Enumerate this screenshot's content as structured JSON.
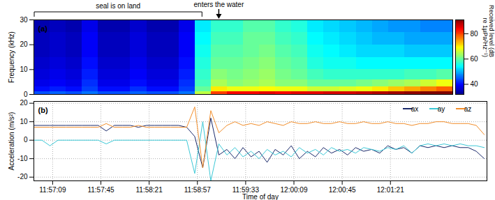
{
  "chart_data": [
    {
      "type": "heatmap",
      "panel_label": "(a)",
      "ylabel": "Frequency (kHz)",
      "tick_labels": "y",
      "annotations": [
        {
          "text": "seal is on land",
          "x1": 43015,
          "x2": 43141
        },
        {
          "text": "enters the water",
          "x": 43153
        }
      ],
      "xlim": [
        43015,
        43327
      ],
      "ylim": [
        0,
        30
      ],
      "yticks": [
        0,
        10,
        20,
        30
      ],
      "time_bins": [
        43015,
        43027,
        43039,
        43051,
        43063,
        43075,
        43087,
        43099,
        43111,
        43123,
        43135,
        43147,
        43159,
        43171,
        43183,
        43195,
        43207,
        43219,
        43231,
        43243,
        43255,
        43267,
        43279,
        43291,
        43303,
        43315,
        43327
      ],
      "frequency_bins": [
        0,
        1,
        3,
        6,
        10,
        15,
        20,
        25,
        30
      ],
      "cells": [
        [
          44,
          45,
          44,
          46,
          44,
          44,
          45,
          44,
          44,
          46,
          65,
          80,
          84,
          84,
          85,
          84,
          85,
          85,
          86,
          86,
          87,
          88,
          89,
          90,
          91,
          92
        ],
        [
          40,
          41,
          40,
          43,
          40,
          40,
          42,
          40,
          40,
          43,
          60,
          70,
          68,
          68,
          69,
          68,
          68,
          66,
          66,
          67,
          68,
          70,
          72,
          74,
          76,
          78
        ],
        [
          38,
          39,
          38,
          42,
          38,
          38,
          40,
          38,
          38,
          42,
          58,
          64,
          62,
          63,
          64,
          62,
          62,
          60,
          60,
          60,
          61,
          62,
          63,
          64,
          66,
          68
        ],
        [
          37,
          38,
          37,
          41,
          37,
          37,
          39,
          37,
          37,
          41,
          57,
          62,
          61,
          62,
          63,
          61,
          60,
          58,
          57,
          57,
          57,
          57,
          57,
          58,
          58,
          59
        ],
        [
          36,
          37,
          36,
          40,
          36,
          36,
          38,
          36,
          36,
          40,
          56,
          60,
          60,
          61,
          62,
          60,
          59,
          56,
          55,
          55,
          54,
          54,
          54,
          54,
          54,
          54
        ],
        [
          35,
          36,
          35,
          39,
          35,
          35,
          37,
          35,
          35,
          39,
          55,
          59,
          59,
          60,
          61,
          59,
          58,
          55,
          54,
          53,
          52,
          52,
          52,
          51,
          51,
          51
        ],
        [
          35,
          36,
          35,
          39,
          35,
          35,
          37,
          35,
          35,
          39,
          54,
          58,
          58,
          60,
          60,
          58,
          57,
          54,
          53,
          52,
          51,
          50,
          50,
          49,
          49,
          49
        ],
        [
          34,
          35,
          34,
          38,
          34,
          34,
          36,
          34,
          34,
          38,
          53,
          57,
          57,
          59,
          59,
          57,
          56,
          53,
          52,
          51,
          50,
          49,
          48,
          48,
          47,
          47
        ]
      ],
      "colorbar": {
        "label": "Received level (dB re 1µPa²Hz⁻¹)",
        "range": [
          32,
          91
        ],
        "ticks": [
          40,
          60,
          80
        ]
      }
    },
    {
      "type": "line",
      "panel_label": "(b)",
      "xlabel": "Time of day",
      "ylabel": "Acceleration (m/s²)",
      "grid": true,
      "legend": "top-right",
      "xlim": [
        43015,
        43353
      ],
      "xticks": [
        {
          "value": 43029,
          "label": "11:57:09"
        },
        {
          "value": 43065,
          "label": "11:57:45"
        },
        {
          "value": 43101,
          "label": "11:58:21"
        },
        {
          "value": 43137,
          "label": "11:58:57"
        },
        {
          "value": 43173,
          "label": "11:59:33"
        },
        {
          "value": 43209,
          "label": "12:00:09"
        },
        {
          "value": 43245,
          "label": "12:00:45"
        },
        {
          "value": 43281,
          "label": "12:01:21"
        }
      ],
      "ylim": [
        -22,
        21
      ],
      "yticks": [
        -20,
        -10,
        0,
        10,
        20
      ],
      "x": [
        43015,
        43021,
        43027,
        43033,
        43039,
        43045,
        43051,
        43057,
        43063,
        43069,
        43075,
        43081,
        43087,
        43093,
        43099,
        43105,
        43111,
        43117,
        43123,
        43129,
        43135,
        43141,
        43147,
        43153,
        43159,
        43165,
        43171,
        43177,
        43183,
        43189,
        43195,
        43201,
        43207,
        43213,
        43219,
        43225,
        43231,
        43237,
        43243,
        43249,
        43255,
        43261,
        43267,
        43273,
        43279,
        43285,
        43291,
        43297,
        43303,
        43309,
        43315,
        43321,
        43327,
        43333,
        43339,
        43345,
        43351
      ],
      "series": [
        {
          "name": "ax",
          "color": "#1b2a6b",
          "values": [
            8,
            8,
            8,
            8,
            8,
            8,
            8,
            8,
            8,
            5,
            8,
            8,
            8,
            7,
            8,
            8,
            8,
            8,
            8,
            7,
            2,
            -15,
            12,
            -8,
            -5,
            -10,
            -4,
            -9,
            -6,
            -12,
            -5,
            -8,
            -3,
            -10,
            -6,
            -9,
            -4,
            -7,
            -5,
            -8,
            -4,
            -6,
            -5,
            -7,
            -3,
            -5,
            -4,
            -7,
            -3,
            -4,
            -3,
            -4,
            -3,
            -4,
            -4,
            -6,
            -10
          ]
        },
        {
          "name": "ay",
          "color": "#3cc8d6",
          "values": [
            0,
            0,
            -3,
            0,
            0,
            0,
            0,
            0,
            0,
            -2,
            0,
            0,
            0,
            0,
            0,
            0,
            0,
            0,
            0,
            0,
            -18,
            10,
            -22,
            -2,
            -8,
            -4,
            -9,
            -6,
            -10,
            -5,
            -8,
            -6,
            -9,
            -4,
            -7,
            -5,
            -8,
            -4,
            -6,
            -5,
            -7,
            -4,
            -5,
            -6,
            -4,
            -5,
            -3,
            -7,
            -3,
            -2,
            -3,
            -2,
            -3,
            -2,
            -3,
            -3,
            -4
          ]
        },
        {
          "name": "az",
          "color": "#f28e2b",
          "values": [
            7,
            7,
            7,
            7,
            7,
            7,
            7,
            7,
            7,
            9,
            7,
            7,
            7,
            8,
            7,
            7,
            7,
            7,
            7,
            7,
            18,
            -15,
            16,
            4,
            8,
            10,
            8,
            9,
            8,
            10,
            9,
            8,
            10,
            9,
            9,
            10,
            9,
            9,
            10,
            9,
            9,
            10,
            9,
            9,
            10,
            9,
            9,
            8,
            9,
            9,
            10,
            10,
            9,
            9,
            9,
            8,
            3
          ]
        }
      ]
    }
  ]
}
